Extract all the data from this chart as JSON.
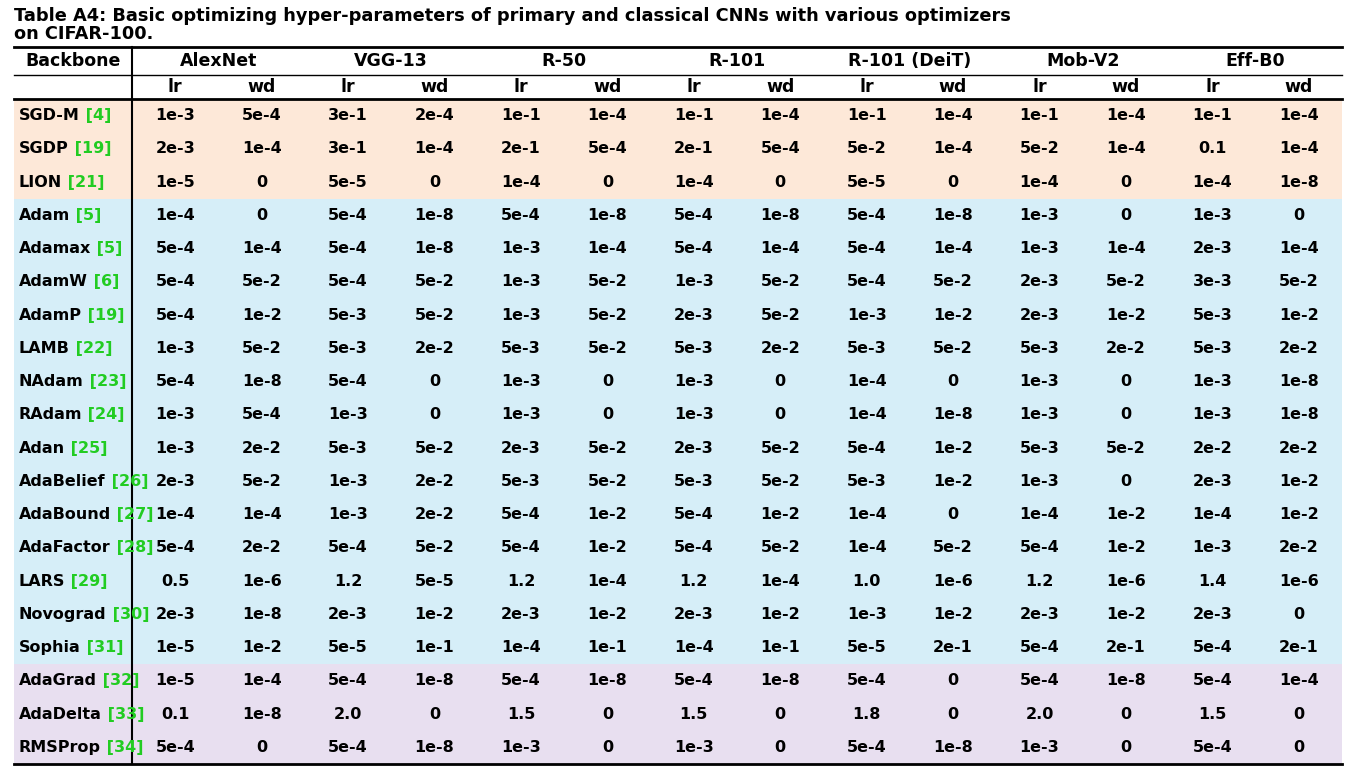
{
  "title_line1": "Table A4: Basic optimizing hyper-parameters of primary and classical CNNs with various optimizers",
  "title_line2": "on CIFAR-100.",
  "col_groups": [
    "Backbone",
    "AlexNet",
    "VGG-13",
    "R-50",
    "R-101",
    "R-101 (DeiT)",
    "Mob-V2",
    "Eff-B0"
  ],
  "rows": [
    [
      "SGD-M",
      "4",
      "1e-3",
      "5e-4",
      "3e-1",
      "2e-4",
      "1e-1",
      "1e-4",
      "1e-1",
      "1e-4",
      "1e-1",
      "1e-4",
      "1e-1",
      "1e-4",
      "1e-1",
      "1e-4"
    ],
    [
      "SGDP",
      "19",
      "2e-3",
      "1e-4",
      "3e-1",
      "1e-4",
      "2e-1",
      "5e-4",
      "2e-1",
      "5e-4",
      "5e-2",
      "1e-4",
      "5e-2",
      "1e-4",
      "0.1",
      "1e-4"
    ],
    [
      "LION",
      "21",
      "1e-5",
      "0",
      "5e-5",
      "0",
      "1e-4",
      "0",
      "1e-4",
      "0",
      "5e-5",
      "0",
      "1e-4",
      "0",
      "1e-4",
      "1e-8"
    ],
    [
      "Adam",
      "5",
      "1e-4",
      "0",
      "5e-4",
      "1e-8",
      "5e-4",
      "1e-8",
      "5e-4",
      "1e-8",
      "5e-4",
      "1e-8",
      "1e-3",
      "0",
      "1e-3",
      "0"
    ],
    [
      "Adamax",
      "5",
      "5e-4",
      "1e-4",
      "5e-4",
      "1e-8",
      "1e-3",
      "1e-4",
      "5e-4",
      "1e-4",
      "5e-4",
      "1e-4",
      "1e-3",
      "1e-4",
      "2e-3",
      "1e-4"
    ],
    [
      "AdamW",
      "6",
      "5e-4",
      "5e-2",
      "5e-4",
      "5e-2",
      "1e-3",
      "5e-2",
      "1e-3",
      "5e-2",
      "5e-4",
      "5e-2",
      "2e-3",
      "5e-2",
      "3e-3",
      "5e-2"
    ],
    [
      "AdamP",
      "19",
      "5e-4",
      "1e-2",
      "5e-3",
      "5e-2",
      "1e-3",
      "5e-2",
      "2e-3",
      "5e-2",
      "1e-3",
      "1e-2",
      "2e-3",
      "1e-2",
      "5e-3",
      "1e-2"
    ],
    [
      "LAMB",
      "22",
      "1e-3",
      "5e-2",
      "5e-3",
      "2e-2",
      "5e-3",
      "5e-2",
      "5e-3",
      "2e-2",
      "5e-3",
      "5e-2",
      "5e-3",
      "2e-2",
      "5e-3",
      "2e-2"
    ],
    [
      "NAdam",
      "23",
      "5e-4",
      "1e-8",
      "5e-4",
      "0",
      "1e-3",
      "0",
      "1e-3",
      "0",
      "1e-4",
      "0",
      "1e-3",
      "0",
      "1e-3",
      "1e-8"
    ],
    [
      "RAdam",
      "24",
      "1e-3",
      "5e-4",
      "1e-3",
      "0",
      "1e-3",
      "0",
      "1e-3",
      "0",
      "1e-4",
      "1e-8",
      "1e-3",
      "0",
      "1e-3",
      "1e-8"
    ],
    [
      "Adan",
      "25",
      "1e-3",
      "2e-2",
      "5e-3",
      "5e-2",
      "2e-3",
      "5e-2",
      "2e-3",
      "5e-2",
      "5e-4",
      "1e-2",
      "5e-3",
      "5e-2",
      "2e-2",
      "2e-2"
    ],
    [
      "AdaBelief",
      "26",
      "2e-3",
      "5e-2",
      "1e-3",
      "2e-2",
      "5e-3",
      "5e-2",
      "5e-3",
      "5e-2",
      "5e-3",
      "1e-2",
      "1e-3",
      "0",
      "2e-3",
      "1e-2"
    ],
    [
      "AdaBound",
      "27",
      "1e-4",
      "1e-4",
      "1e-3",
      "2e-2",
      "5e-4",
      "1e-2",
      "5e-4",
      "1e-2",
      "1e-4",
      "0",
      "1e-4",
      "1e-2",
      "1e-4",
      "1e-2"
    ],
    [
      "AdaFactor",
      "28",
      "5e-4",
      "2e-2",
      "5e-4",
      "5e-2",
      "5e-4",
      "1e-2",
      "5e-4",
      "5e-2",
      "1e-4",
      "5e-2",
      "5e-4",
      "1e-2",
      "1e-3",
      "2e-2"
    ],
    [
      "LARS",
      "29",
      "0.5",
      "1e-6",
      "1.2",
      "5e-5",
      "1.2",
      "1e-4",
      "1.2",
      "1e-4",
      "1.0",
      "1e-6",
      "1.2",
      "1e-6",
      "1.4",
      "1e-6"
    ],
    [
      "Novograd",
      "30",
      "2e-3",
      "1e-8",
      "2e-3",
      "1e-2",
      "2e-3",
      "1e-2",
      "2e-3",
      "1e-2",
      "1e-3",
      "1e-2",
      "2e-3",
      "1e-2",
      "2e-3",
      "0"
    ],
    [
      "Sophia",
      "31",
      "1e-5",
      "1e-2",
      "5e-5",
      "1e-1",
      "1e-4",
      "1e-1",
      "1e-4",
      "1e-1",
      "5e-5",
      "2e-1",
      "5e-4",
      "2e-1",
      "5e-4",
      "2e-1"
    ],
    [
      "AdaGrad",
      "32",
      "1e-5",
      "1e-4",
      "5e-4",
      "1e-8",
      "5e-4",
      "1e-8",
      "5e-4",
      "1e-8",
      "5e-4",
      "0",
      "5e-4",
      "1e-8",
      "5e-4",
      "1e-4"
    ],
    [
      "AdaDelta",
      "33",
      "0.1",
      "1e-8",
      "2.0",
      "0",
      "1.5",
      "0",
      "1.5",
      "0",
      "1.8",
      "0",
      "2.0",
      "0",
      "1.5",
      "0"
    ],
    [
      "RMSProp",
      "34",
      "5e-4",
      "0",
      "5e-4",
      "1e-8",
      "1e-3",
      "0",
      "1e-3",
      "0",
      "5e-4",
      "1e-8",
      "1e-3",
      "0",
      "5e-4",
      "0"
    ]
  ],
  "row_colors": [
    "#fde8d8",
    "#fde8d8",
    "#fde8d8",
    "#d6eef8",
    "#d6eef8",
    "#d6eef8",
    "#d6eef8",
    "#d6eef8",
    "#d6eef8",
    "#d6eef8",
    "#d6eef8",
    "#d6eef8",
    "#d6eef8",
    "#d6eef8",
    "#d6eef8",
    "#d6eef8",
    "#d6eef8",
    "#e8dff0",
    "#e8dff0",
    "#e8dff0"
  ],
  "ref_color": "#22cc22",
  "fig_width": 13.54,
  "fig_height": 7.82,
  "dpi": 100
}
